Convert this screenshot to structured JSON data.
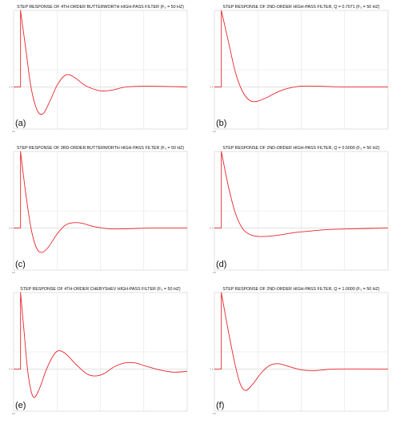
{
  "chart_data": [
    {
      "type": "line",
      "panel_label": "(a)",
      "title": "STEP RESPONSE OF 4TH-ORDER BUTTERWORTH HIGH-PASS FILTER (F₃ = 50 HZ)",
      "x_ticks": [
        "0.0",
        "",
        "",
        "",
        "",
        ""
      ],
      "y_ticks": [
        "0.0"
      ],
      "ylim": [
        -0.55,
        1.0
      ],
      "grid": true,
      "series": [
        {
          "color": "#e8262b",
          "step_time": 0.04,
          "points": [
            [
              0,
              0
            ],
            [
              0.04,
              0
            ],
            [
              0.04,
              1.0
            ],
            [
              0.07,
              0.5
            ],
            [
              0.1,
              0.0
            ],
            [
              0.135,
              -0.3
            ],
            [
              0.17,
              -0.35
            ],
            [
              0.21,
              -0.18
            ],
            [
              0.25,
              0.02
            ],
            [
              0.29,
              0.14
            ],
            [
              0.32,
              0.16
            ],
            [
              0.36,
              0.11
            ],
            [
              0.42,
              0.01
            ],
            [
              0.5,
              -0.05
            ],
            [
              0.57,
              -0.04
            ],
            [
              0.65,
              0.0
            ],
            [
              0.78,
              0.01
            ],
            [
              1.0,
              0.0
            ]
          ]
        }
      ]
    },
    {
      "type": "line",
      "panel_label": "(b)",
      "title": "STEP RESPONSE OF 2ND-ORDER HIGH-PASS FILTER, Q = 0.7071 (F₃ = 50 HZ)",
      "x_ticks": [
        "0.0",
        "",
        "",
        "",
        "",
        ""
      ],
      "y_ticks": [
        "0.0"
      ],
      "ylim": [
        -0.55,
        1.0
      ],
      "grid": true,
      "series": [
        {
          "color": "#e8262b",
          "step_time": 0.04,
          "points": [
            [
              0,
              0
            ],
            [
              0.04,
              0
            ],
            [
              0.04,
              1.0
            ],
            [
              0.08,
              0.6
            ],
            [
              0.12,
              0.2
            ],
            [
              0.16,
              -0.05
            ],
            [
              0.2,
              -0.17
            ],
            [
              0.24,
              -0.19
            ],
            [
              0.3,
              -0.14
            ],
            [
              0.36,
              -0.07
            ],
            [
              0.42,
              -0.02
            ],
            [
              0.5,
              0.01
            ],
            [
              0.6,
              0.01
            ],
            [
              0.75,
              0.0
            ],
            [
              1.0,
              0.0
            ]
          ]
        }
      ]
    },
    {
      "type": "line",
      "panel_label": "(c)",
      "title": "STEP RESPONSE OF 3RD-ORDER BUTTERWORTH HIGH-PASS FILTER (F₃ = 50 HZ)",
      "x_ticks": [
        "0.0",
        "",
        "",
        "",
        "",
        ""
      ],
      "y_ticks": [
        "0.0"
      ],
      "ylim": [
        -0.55,
        1.0
      ],
      "grid": true,
      "series": [
        {
          "color": "#e8262b",
          "step_time": 0.04,
          "points": [
            [
              0,
              0
            ],
            [
              0.04,
              0
            ],
            [
              0.04,
              1.0
            ],
            [
              0.07,
              0.45
            ],
            [
              0.1,
              0.0
            ],
            [
              0.13,
              -0.25
            ],
            [
              0.16,
              -0.32
            ],
            [
              0.2,
              -0.25
            ],
            [
              0.25,
              -0.08
            ],
            [
              0.3,
              0.04
            ],
            [
              0.35,
              0.07
            ],
            [
              0.4,
              0.06
            ],
            [
              0.46,
              0.02
            ],
            [
              0.55,
              -0.01
            ],
            [
              0.65,
              -0.01
            ],
            [
              0.8,
              0.0
            ],
            [
              1.0,
              0.0
            ]
          ]
        }
      ]
    },
    {
      "type": "line",
      "panel_label": "(d)",
      "title": "STEP RESPONSE OF 2ND-ORDER HIGH-PASS FILTER, Q = 0.5000 (F₃ = 50 HZ)",
      "x_ticks": [
        "0.0",
        "",
        "",
        "",
        "",
        ""
      ],
      "y_ticks": [
        "0.0"
      ],
      "ylim": [
        -0.55,
        1.0
      ],
      "grid": true,
      "series": [
        {
          "color": "#e8262b",
          "step_time": 0.04,
          "points": [
            [
              0,
              0
            ],
            [
              0.04,
              0
            ],
            [
              0.04,
              1.0
            ],
            [
              0.08,
              0.55
            ],
            [
              0.12,
              0.2
            ],
            [
              0.16,
              0.0
            ],
            [
              0.2,
              -0.08
            ],
            [
              0.25,
              -0.11
            ],
            [
              0.3,
              -0.11
            ],
            [
              0.38,
              -0.09
            ],
            [
              0.46,
              -0.06
            ],
            [
              0.55,
              -0.04
            ],
            [
              0.65,
              -0.02
            ],
            [
              0.8,
              -0.01
            ],
            [
              1.0,
              0.0
            ]
          ]
        }
      ]
    },
    {
      "type": "line",
      "panel_label": "(e)",
      "title": "STEP RESPONSE OF 4TH-ORDER CHEBYSHEV HIGH-PASS FILTER (F₃ = 50 HZ)",
      "x_ticks": [
        "0.0",
        "",
        "",
        "",
        "",
        ""
      ],
      "y_ticks": [
        "0.0"
      ],
      "ylim": [
        -0.55,
        1.0
      ],
      "grid": true,
      "series": [
        {
          "color": "#e8262b",
          "step_time": 0.04,
          "points": [
            [
              0,
              0
            ],
            [
              0.04,
              0
            ],
            [
              0.04,
              1.0
            ],
            [
              0.06,
              0.5
            ],
            [
              0.08,
              0.0
            ],
            [
              0.1,
              -0.28
            ],
            [
              0.12,
              -0.37
            ],
            [
              0.15,
              -0.25
            ],
            [
              0.19,
              0.0
            ],
            [
              0.23,
              0.18
            ],
            [
              0.26,
              0.24
            ],
            [
              0.3,
              0.2
            ],
            [
              0.36,
              0.06
            ],
            [
              0.42,
              -0.06
            ],
            [
              0.47,
              -0.09
            ],
            [
              0.52,
              -0.06
            ],
            [
              0.58,
              0.03
            ],
            [
              0.64,
              0.08
            ],
            [
              0.7,
              0.08
            ],
            [
              0.76,
              0.04
            ],
            [
              0.84,
              -0.01
            ],
            [
              0.92,
              -0.04
            ],
            [
              1.0,
              -0.03
            ]
          ]
        }
      ]
    },
    {
      "type": "line",
      "panel_label": "(f)",
      "title": "STEP RESPONSE OF 2ND-ORDER HIGH-PASS FILTER, Q = 1.0000 (F₃ = 50 HZ)",
      "x_ticks": [
        "0.0",
        "",
        "",
        "",
        "",
        ""
      ],
      "y_ticks": [
        "0.0"
      ],
      "ylim": [
        -0.55,
        1.0
      ],
      "grid": true,
      "series": [
        {
          "color": "#e8262b",
          "step_time": 0.04,
          "points": [
            [
              0,
              0
            ],
            [
              0.04,
              0
            ],
            [
              0.04,
              1.0
            ],
            [
              0.08,
              0.5
            ],
            [
              0.12,
              0.05
            ],
            [
              0.15,
              -0.2
            ],
            [
              0.18,
              -0.28
            ],
            [
              0.22,
              -0.2
            ],
            [
              0.27,
              -0.05
            ],
            [
              0.32,
              0.05
            ],
            [
              0.37,
              0.07
            ],
            [
              0.42,
              0.04
            ],
            [
              0.5,
              -0.01
            ],
            [
              0.58,
              -0.02
            ],
            [
              0.7,
              0.0
            ],
            [
              1.0,
              0.0
            ]
          ]
        }
      ]
    }
  ]
}
